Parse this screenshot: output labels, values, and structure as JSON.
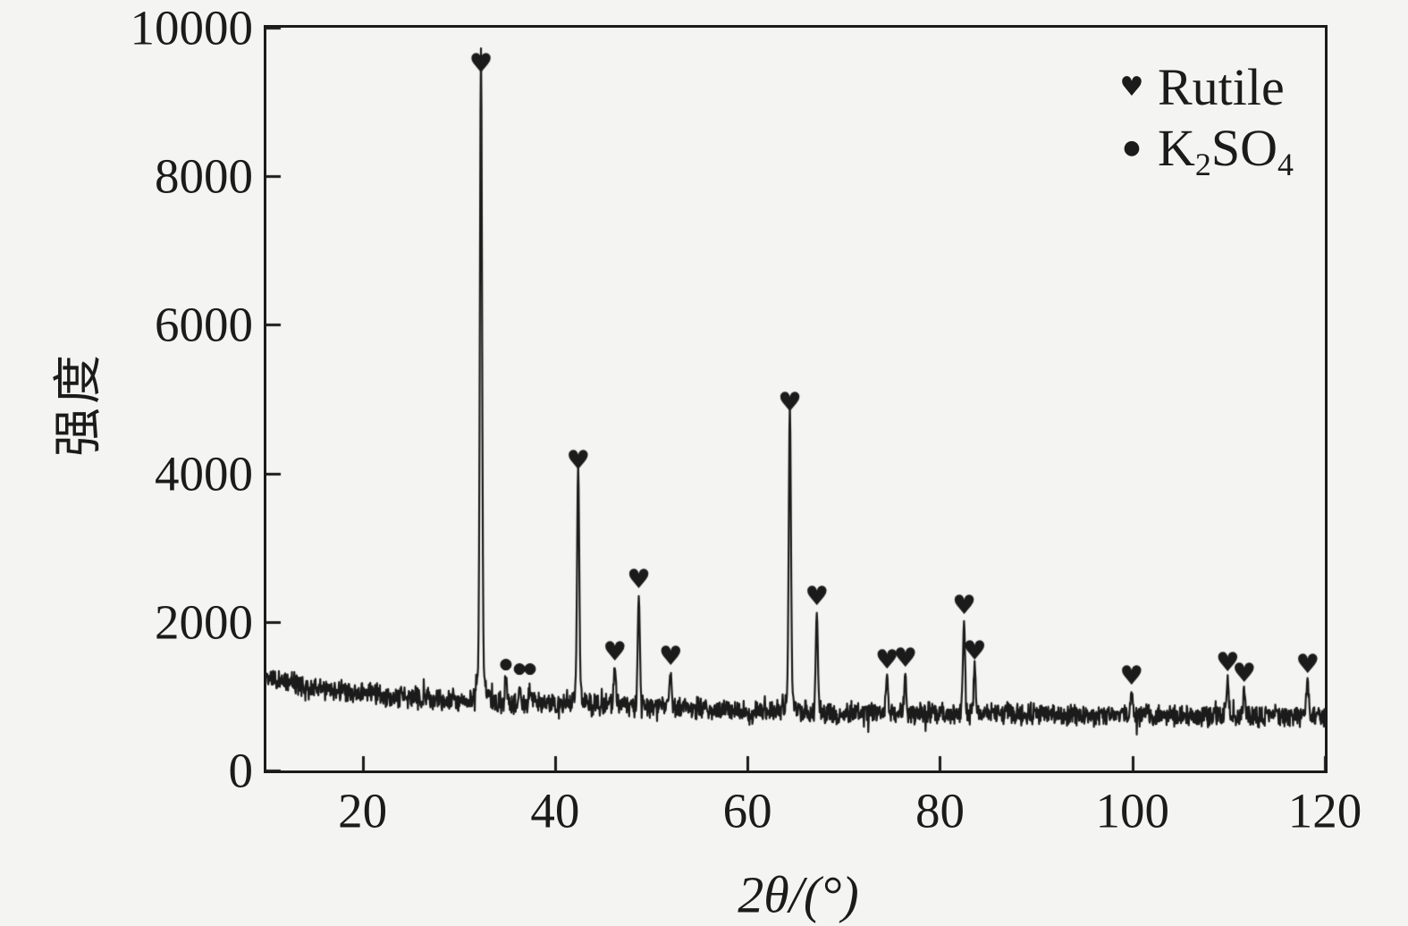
{
  "chart_data": {
    "type": "line",
    "title": "",
    "xlabel_parts": {
      "two": "2",
      "theta": "θ",
      "rest": "/(°)"
    },
    "ylabel": "强度",
    "xlim": [
      10,
      120
    ],
    "ylim": [
      0,
      10000
    ],
    "x_ticks": [
      20,
      40,
      60,
      80,
      100,
      120
    ],
    "y_ticks": [
      0,
      2000,
      4000,
      6000,
      8000,
      10000
    ],
    "grid": false,
    "legend_position": "upper-right",
    "ink_color": "#1b1b1b",
    "background_color": "#f4f4f2",
    "legend": {
      "items": [
        {
          "marker": "♥",
          "label": "Rutile"
        },
        {
          "marker": "●",
          "label_k": "K",
          "label_sub2": "2",
          "label_so": "SO",
          "label_sub4": "4"
        }
      ]
    },
    "baseline": [
      [
        10,
        1260
      ],
      [
        12,
        1200
      ],
      [
        15,
        1120
      ],
      [
        18,
        1060
      ],
      [
        20,
        1030
      ],
      [
        25,
        980
      ],
      [
        28,
        958
      ],
      [
        30,
        948
      ],
      [
        33,
        930
      ],
      [
        35,
        918
      ],
      [
        40,
        880
      ],
      [
        45,
        885
      ],
      [
        50,
        858
      ],
      [
        55,
        828
      ],
      [
        60,
        800
      ],
      [
        65,
        790
      ],
      [
        70,
        780
      ],
      [
        75,
        788
      ],
      [
        80,
        768
      ],
      [
        85,
        760
      ],
      [
        90,
        758
      ],
      [
        95,
        748
      ],
      [
        100,
        743
      ],
      [
        105,
        738
      ],
      [
        110,
        733
      ],
      [
        115,
        728
      ],
      [
        120,
        718
      ]
    ],
    "series": [
      {
        "name": "Rutile",
        "marker": "♥",
        "peaks": [
          [
            32.3,
            9300
          ],
          [
            42.4,
            3960
          ],
          [
            46.2,
            1380
          ],
          [
            48.7,
            2350
          ],
          [
            52.0,
            1320
          ],
          [
            64.4,
            4740
          ],
          [
            67.2,
            2130
          ],
          [
            74.5,
            1270
          ],
          [
            76.4,
            1300
          ],
          [
            82.5,
            2000
          ],
          [
            83.6,
            1390
          ],
          [
            99.9,
            1060
          ],
          [
            109.9,
            1240
          ],
          [
            111.6,
            1090
          ],
          [
            118.2,
            1210
          ]
        ]
      },
      {
        "name": "K2SO4",
        "marker": "●",
        "peaks": [
          [
            34.9,
            1240
          ],
          [
            36.3,
            1070
          ],
          [
            37.4,
            1070
          ]
        ],
        "marker_y": [
          1430,
          1360,
          1360
        ]
      }
    ],
    "noise": {
      "amplitude": 90,
      "seed": 71
    }
  }
}
